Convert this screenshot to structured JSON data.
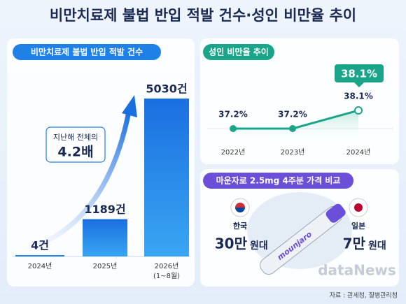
{
  "title": "비만치료제 불법 반입 적발 건수·성인 비만율 추이",
  "chart_data": [
    {
      "type": "bar",
      "title": "비만치료제 불법 반입 적발 건수",
      "categories": [
        "2024년",
        "2025년",
        "2026년\n(1~8월)"
      ],
      "values": [
        4,
        1189,
        5030
      ],
      "value_labels": [
        "4건",
        "1189건",
        "5030건"
      ],
      "color": "#1f80e6",
      "annotation": {
        "text": "지난해 전체의",
        "value": "4.2배"
      }
    },
    {
      "type": "line",
      "title": "성인 비만율 추이",
      "categories": [
        "2022년",
        "2023년",
        "2024년"
      ],
      "values": [
        37.2,
        37.2,
        38.1
      ],
      "value_labels": [
        "37.2%",
        "37.2%",
        "38.1%"
      ],
      "color": "#1aa58a"
    }
  ],
  "price_panel": {
    "title": "마운자로 2.5mg 4주분 가격 비교",
    "product": "mounjaro",
    "items": [
      {
        "country": "한국",
        "amount": "30만",
        "unit": "원대"
      },
      {
        "country": "일본",
        "amount": "7만",
        "unit": "원대"
      }
    ]
  },
  "watermark": "dataNews",
  "source": "자료 : 관세청, 질병관리청"
}
